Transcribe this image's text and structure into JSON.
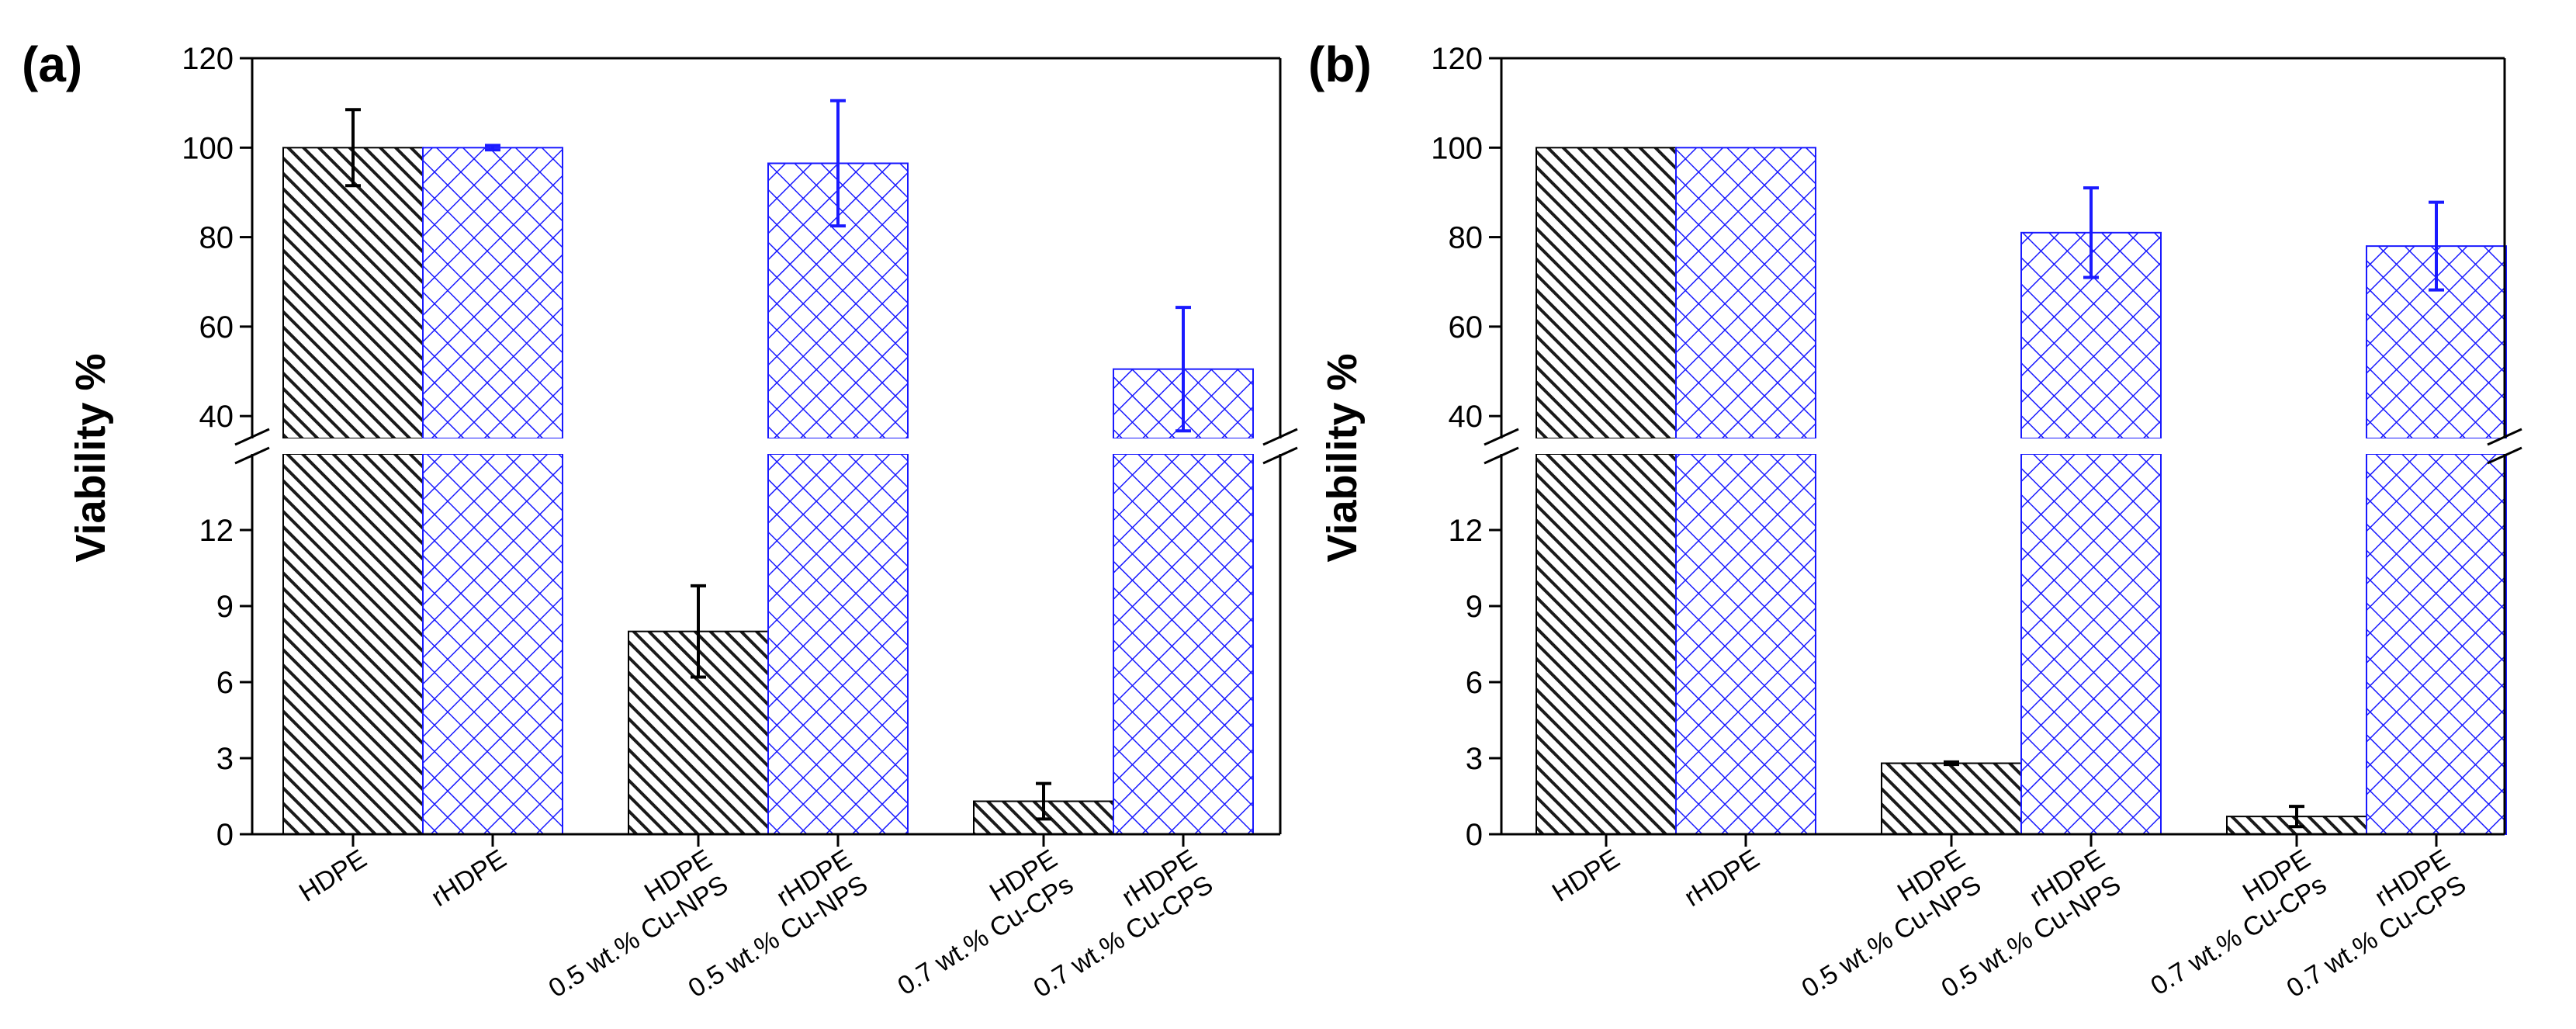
{
  "chart_data": [
    {
      "type": "bar",
      "panel_label": "(a)",
      "ylabel": "Viability %",
      "axis_break": {
        "lower_range": [
          0,
          15
        ],
        "upper_range": [
          35,
          120
        ]
      },
      "y_ticks": [
        0,
        3,
        6,
        9,
        12,
        40,
        60,
        80,
        100,
        120
      ],
      "categories": [
        {
          "lines": [
            "HDPE"
          ]
        },
        {
          "lines": [
            "rHDPE"
          ]
        },
        {
          "lines": [
            "HDPE",
            "0.5 wt.% Cu-NPS"
          ]
        },
        {
          "lines": [
            "rHDPE",
            "0.5 wt.% Cu-NPS"
          ]
        },
        {
          "lines": [
            "HDPE",
            "0.7 wt.% Cu-CPs"
          ]
        },
        {
          "lines": [
            "rHDPE",
            "0.7 wt.% Cu-CPS"
          ]
        }
      ],
      "bars": [
        {
          "series": "HDPE",
          "value": 100,
          "error": 8.5
        },
        {
          "series": "rHDPE",
          "value": 100,
          "error": 0.5
        },
        {
          "series": "HDPE",
          "value": 8.0,
          "error": 1.8
        },
        {
          "series": "rHDPE",
          "value": 96.5,
          "error": 14
        },
        {
          "series": "HDPE",
          "value": 1.3,
          "error": 0.7
        },
        {
          "series": "rHDPE",
          "value": 50.5,
          "error": 13.8
        }
      ]
    },
    {
      "type": "bar",
      "panel_label": "(b)",
      "ylabel": "Viability %",
      "axis_break": {
        "lower_range": [
          0,
          15
        ],
        "upper_range": [
          35,
          120
        ]
      },
      "y_ticks": [
        0,
        3,
        6,
        9,
        12,
        40,
        60,
        80,
        100,
        120
      ],
      "categories": [
        {
          "lines": [
            "HDPE"
          ]
        },
        {
          "lines": [
            "rHDPE"
          ]
        },
        {
          "lines": [
            "HDPE",
            "0.5 wt.% Cu-NPS"
          ]
        },
        {
          "lines": [
            "rHDPE",
            "0.5 wt.% Cu-NPS"
          ]
        },
        {
          "lines": [
            "HDPE",
            "0.7 wt.% Cu-CPs"
          ]
        },
        {
          "lines": [
            "rHDPE",
            "0.7 wt.% Cu-CPS"
          ]
        }
      ],
      "bars": [
        {
          "series": "HDPE",
          "value": 100,
          "error": 0
        },
        {
          "series": "rHDPE",
          "value": 100,
          "error": 0
        },
        {
          "series": "HDPE",
          "value": 2.8,
          "error": 0.05
        },
        {
          "series": "rHDPE",
          "value": 81,
          "error": 10
        },
        {
          "series": "HDPE",
          "value": 0.7,
          "error": 0.4
        },
        {
          "series": "rHDPE",
          "value": 78,
          "error": 9.8
        }
      ]
    }
  ],
  "colors": {
    "HDPE": "#000000",
    "rHDPE": "#1a1aff"
  }
}
